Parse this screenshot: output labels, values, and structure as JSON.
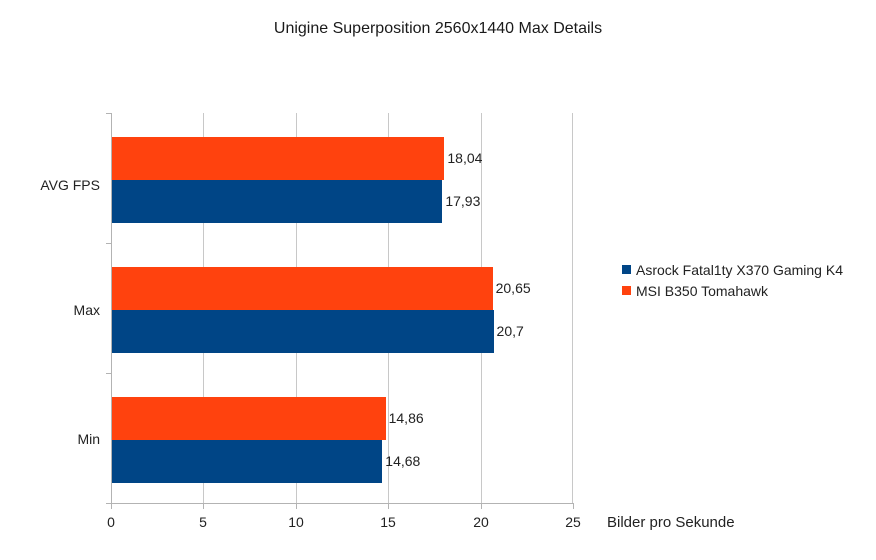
{
  "chart_data": {
    "type": "bar",
    "orientation": "horizontal",
    "title": "Unigine Superposition 2560x1440 Max Details",
    "xlabel": "Bilder pro Sekunde",
    "ylabel": "",
    "categories": [
      "AVG FPS",
      "Max",
      "Min"
    ],
    "series": [
      {
        "name": "Asrock Fatal1ty X370 Gaming K4",
        "color": "#004586",
        "values": [
          17.93,
          20.7,
          14.68
        ],
        "labels": [
          "17,93",
          "20,7",
          "14,68"
        ]
      },
      {
        "name": "MSI B350 Tomahawk",
        "color": "#ff420e",
        "values": [
          18.04,
          20.65,
          14.86
        ],
        "labels": [
          "18,04",
          "20,65",
          "14,86"
        ]
      }
    ],
    "xlim": [
      0,
      25
    ],
    "xticks": [
      "0",
      "5",
      "10",
      "15",
      "20",
      "25"
    ],
    "grid": true,
    "legend_position": "right"
  }
}
